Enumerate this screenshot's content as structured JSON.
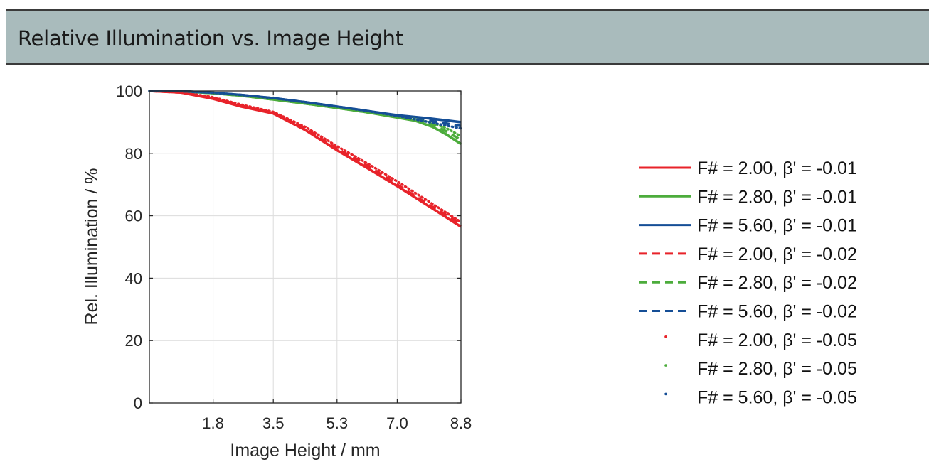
{
  "header": {
    "title": "Relative Illumination vs. Image Height"
  },
  "chart_data": {
    "type": "line",
    "title": "",
    "xlabel": "Image Height / mm",
    "ylabel": "Rel. Illumination / %",
    "xlim": [
      0,
      8.8
    ],
    "ylim": [
      0,
      100
    ],
    "xticks": [
      1.8,
      3.5,
      5.3,
      7.0,
      8.8
    ],
    "xtick_labels": [
      "1.8",
      "3.5",
      "5.3",
      "7.0",
      "8.8"
    ],
    "yticks": [
      0,
      20,
      40,
      60,
      80,
      100
    ],
    "ytick_labels": [
      "0",
      "20",
      "40",
      "60",
      "80",
      "100"
    ],
    "grid": true,
    "legend_position": "right",
    "series": [
      {
        "name": "F# = 2.00, β' = -0.01",
        "style": "solid",
        "color": "#e8232a",
        "x": [
          0,
          0.9,
          1.8,
          2.6,
          3.5,
          4.4,
          5.3,
          6.2,
          7.0,
          7.9,
          8.8
        ],
        "y": [
          100,
          99.5,
          97.5,
          95.0,
          92.8,
          87.5,
          81.0,
          75.0,
          69.5,
          63.0,
          56.5
        ]
      },
      {
        "name": "F# = 2.80, β' = -0.01",
        "style": "solid",
        "color": "#4cac3c",
        "x": [
          0,
          0.9,
          1.8,
          2.6,
          3.5,
          4.4,
          5.3,
          6.2,
          7.0,
          7.5,
          8.0,
          8.4,
          8.8
        ],
        "y": [
          100,
          99.9,
          99.3,
          98.5,
          97.3,
          96.0,
          94.6,
          93.1,
          91.5,
          90.5,
          88.5,
          86.0,
          83.0
        ]
      },
      {
        "name": "F# = 5.60, β' = -0.01",
        "style": "solid",
        "color": "#154e96",
        "x": [
          0,
          0.9,
          1.8,
          2.6,
          3.5,
          4.4,
          5.3,
          6.2,
          7.0,
          7.9,
          8.8
        ],
        "y": [
          100,
          99.9,
          99.4,
          98.7,
          97.7,
          96.4,
          95.0,
          93.5,
          92.2,
          91.2,
          90.0
        ]
      },
      {
        "name": "F# = 2.00, β' = -0.02",
        "style": "dashed",
        "color": "#e8232a",
        "x": [
          0,
          0.9,
          1.8,
          2.6,
          3.5,
          4.4,
          5.3,
          6.2,
          7.0,
          7.9,
          8.8
        ],
        "y": [
          100,
          99.5,
          97.8,
          95.3,
          93.0,
          88.0,
          81.5,
          75.8,
          70.0,
          63.5,
          57.5
        ]
      },
      {
        "name": "F# = 2.80, β' = -0.02",
        "style": "dashed",
        "color": "#4cac3c",
        "x": [
          0,
          0.9,
          1.8,
          2.6,
          3.5,
          4.4,
          5.3,
          6.2,
          7.0,
          7.5,
          8.0,
          8.4,
          8.8
        ],
        "y": [
          100,
          99.9,
          99.3,
          98.5,
          97.3,
          96.0,
          94.6,
          93.1,
          91.6,
          90.8,
          89.3,
          87.0,
          84.3
        ]
      },
      {
        "name": "F# = 5.60, β' = -0.02",
        "style": "dashed",
        "color": "#154e96",
        "x": [
          0,
          0.9,
          1.8,
          2.6,
          3.5,
          4.4,
          5.3,
          6.2,
          7.0,
          7.9,
          8.8
        ],
        "y": [
          100,
          99.9,
          99.4,
          98.7,
          97.7,
          96.4,
          95.0,
          93.5,
          92.0,
          90.5,
          88.8
        ]
      },
      {
        "name": "F# = 2.00, β' = -0.05",
        "style": "dotted",
        "color": "#e8232a",
        "x": [
          0,
          0.9,
          1.8,
          2.6,
          3.5,
          4.4,
          5.3,
          6.2,
          7.0,
          7.9,
          8.8
        ],
        "y": [
          100,
          99.6,
          98.0,
          95.6,
          93.3,
          88.5,
          82.3,
          76.5,
          71.0,
          64.5,
          58.0
        ]
      },
      {
        "name": "F# = 2.80, β' = -0.05",
        "style": "dotted",
        "color": "#4cac3c",
        "x": [
          0,
          0.9,
          1.8,
          2.6,
          3.5,
          4.4,
          5.3,
          6.2,
          7.0,
          7.5,
          8.0,
          8.4,
          8.8
        ],
        "y": [
          100,
          99.9,
          99.3,
          98.5,
          97.3,
          96.0,
          94.6,
          93.1,
          91.7,
          91.0,
          89.8,
          88.0,
          85.5
        ]
      },
      {
        "name": "F# = 5.60, β' = -0.05",
        "style": "dotted",
        "color": "#154e96",
        "x": [
          0,
          0.9,
          1.8,
          2.6,
          3.5,
          4.4,
          5.3,
          6.2,
          7.0,
          7.9,
          8.8
        ],
        "y": [
          100,
          99.9,
          99.4,
          98.7,
          97.7,
          96.4,
          95.0,
          93.5,
          92.0,
          90.0,
          88.0
        ]
      }
    ]
  }
}
